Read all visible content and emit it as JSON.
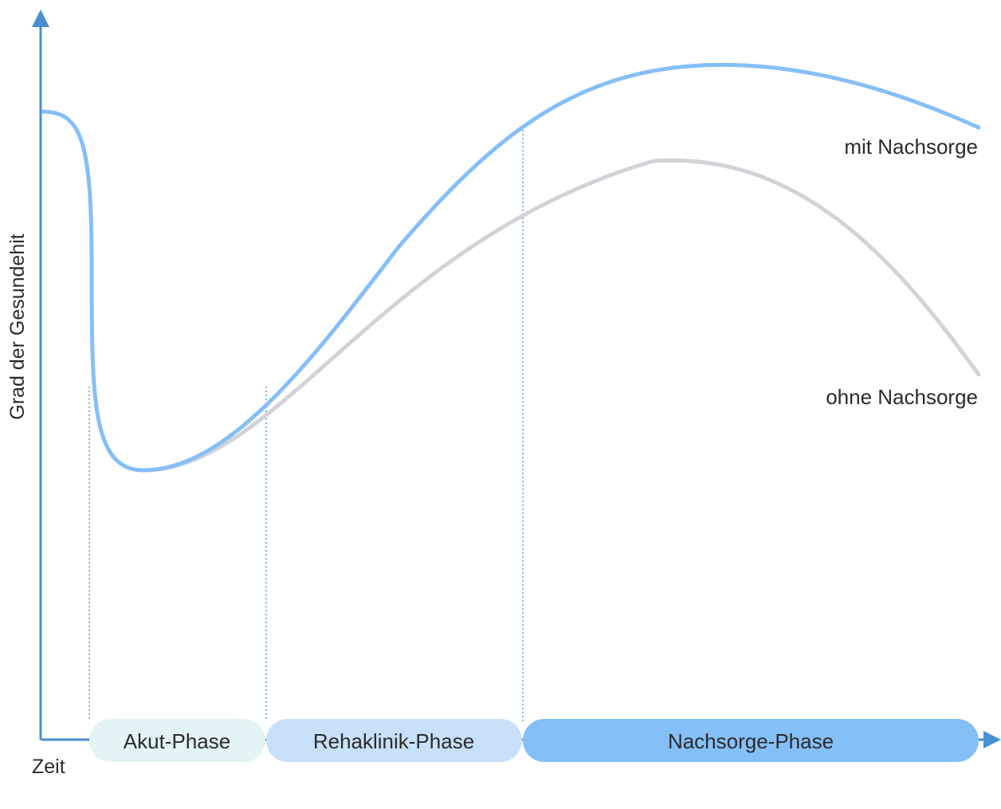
{
  "y_axis_label": "Grad der Gesundehit",
  "x_axis_label": "Zeit",
  "curves": {
    "with": {
      "label": "mit Nachsorge",
      "color": "#85bff7"
    },
    "without": {
      "label": "ohne Nachsorge",
      "color": "#d2d2d8"
    }
  },
  "phases": [
    {
      "label": "Akut-Phase",
      "color": "#e2f4f5"
    },
    {
      "label": "Rehaklinik-Phase",
      "color": "#c8e0fa"
    },
    {
      "label": "Nachsorge-Phase",
      "color": "#85bff7"
    }
  ],
  "colors": {
    "axis": "#4a8fd1",
    "guide": "#4a8fd1"
  }
}
